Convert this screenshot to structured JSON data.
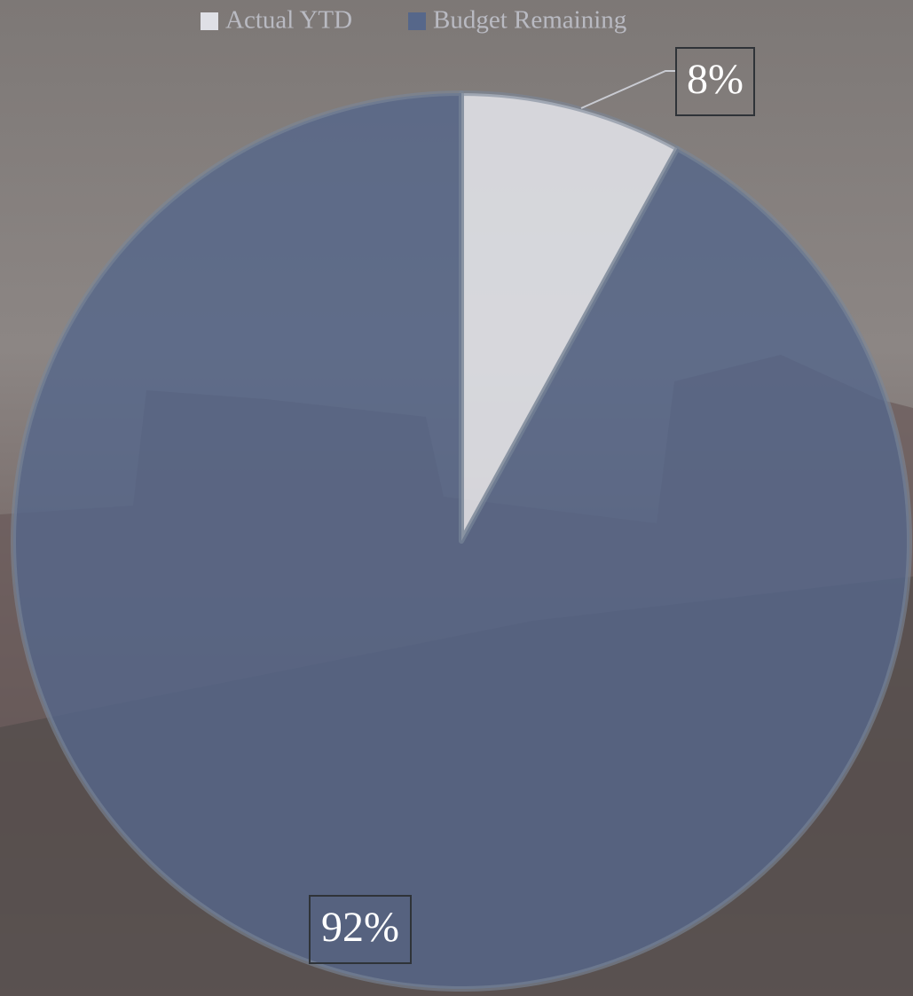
{
  "chart_data": {
    "type": "pie",
    "categories": [
      "Actual YTD",
      "Budget Remaining"
    ],
    "values": [
      8,
      92
    ],
    "value_labels": [
      "8%",
      "92%"
    ],
    "colors": [
      "#dfe0e6",
      "#56678a"
    ]
  }
}
